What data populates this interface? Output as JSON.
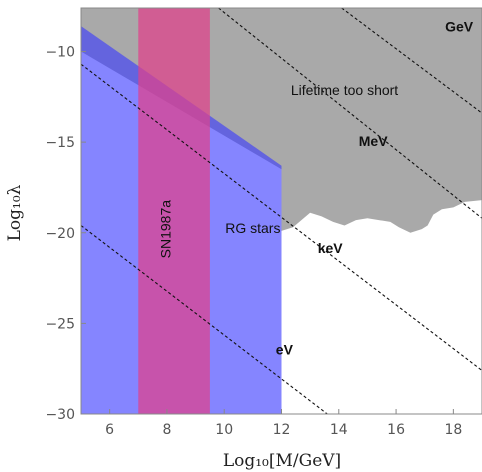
{
  "chart_data": {
    "type": "area",
    "title": "",
    "xlabel": "Log₁₀[M/GeV]",
    "ylabel": "Log₁₀λ",
    "xlim": [
      5,
      19
    ],
    "ylim": [
      -30,
      -7.6
    ],
    "x_ticks": [
      6,
      8,
      10,
      12,
      14,
      16,
      18
    ],
    "y_ticks": [
      -10,
      -15,
      -20,
      -25,
      -30
    ],
    "regions": [
      {
        "name": "Lifetime too short",
        "color": "#a9a9a9",
        "points": [
          [
            5,
            -7.6
          ],
          [
            19,
            -7.6
          ],
          [
            19,
            -18.2
          ],
          [
            18.4,
            -18.3
          ],
          [
            18.0,
            -18.6
          ],
          [
            17.6,
            -18.7
          ],
          [
            17.3,
            -19.0
          ],
          [
            17.1,
            -19.6
          ],
          [
            16.9,
            -19.8
          ],
          [
            16.5,
            -20.0
          ],
          [
            16.1,
            -19.7
          ],
          [
            15.8,
            -19.4
          ],
          [
            15.4,
            -19.3
          ],
          [
            15.0,
            -19.2
          ],
          [
            14.6,
            -19.3
          ],
          [
            14.2,
            -19.6
          ],
          [
            13.8,
            -19.4
          ],
          [
            13.4,
            -19.1
          ],
          [
            13.0,
            -18.9
          ],
          [
            12.4,
            -19.7
          ],
          [
            12.0,
            -19.9
          ],
          [
            12.0,
            -16.5
          ],
          [
            5,
            -10.0
          ]
        ]
      },
      {
        "name": "RG stars",
        "color": "#3a3aff",
        "points": [
          [
            5,
            -8.6
          ],
          [
            12.0,
            -16.3
          ],
          [
            12.0,
            -30
          ],
          [
            5,
            -30
          ]
        ]
      },
      {
        "name": "SN1987a",
        "color": "#e0408a",
        "x_range": [
          7.0,
          9.5
        ]
      }
    ],
    "lines": [
      {
        "name": "eV",
        "points": [
          [
            5,
            -19.6
          ],
          [
            13.6,
            -30.0
          ]
        ]
      },
      {
        "name": "keV",
        "points": [
          [
            5,
            -10.7
          ],
          [
            19,
            -27.6
          ]
        ]
      },
      {
        "name": "MeV",
        "points": [
          [
            9.8,
            -7.6
          ],
          [
            19,
            -19.2
          ]
        ]
      },
      {
        "name": "GeV",
        "points": [
          [
            14.1,
            -7.6
          ],
          [
            19,
            -13.4
          ]
        ]
      }
    ],
    "annotations": [
      {
        "text": "Lifetime too short",
        "x": 14.2,
        "y": -12.2
      },
      {
        "text": "SN1987a",
        "x": 8.0,
        "y": -19.8,
        "rotation": -90
      },
      {
        "text": "RG stars",
        "x": 11.0,
        "y": -19.8
      },
      {
        "text": "eV",
        "x": 12.1,
        "y": -26.5
      },
      {
        "text": "keV",
        "x": 13.7,
        "y": -20.9
      },
      {
        "text": "MeV",
        "x": 15.2,
        "y": -15.0
      },
      {
        "text": "GeV",
        "x": 18.2,
        "y": -8.7
      }
    ],
    "grid": false,
    "legend": "none"
  }
}
